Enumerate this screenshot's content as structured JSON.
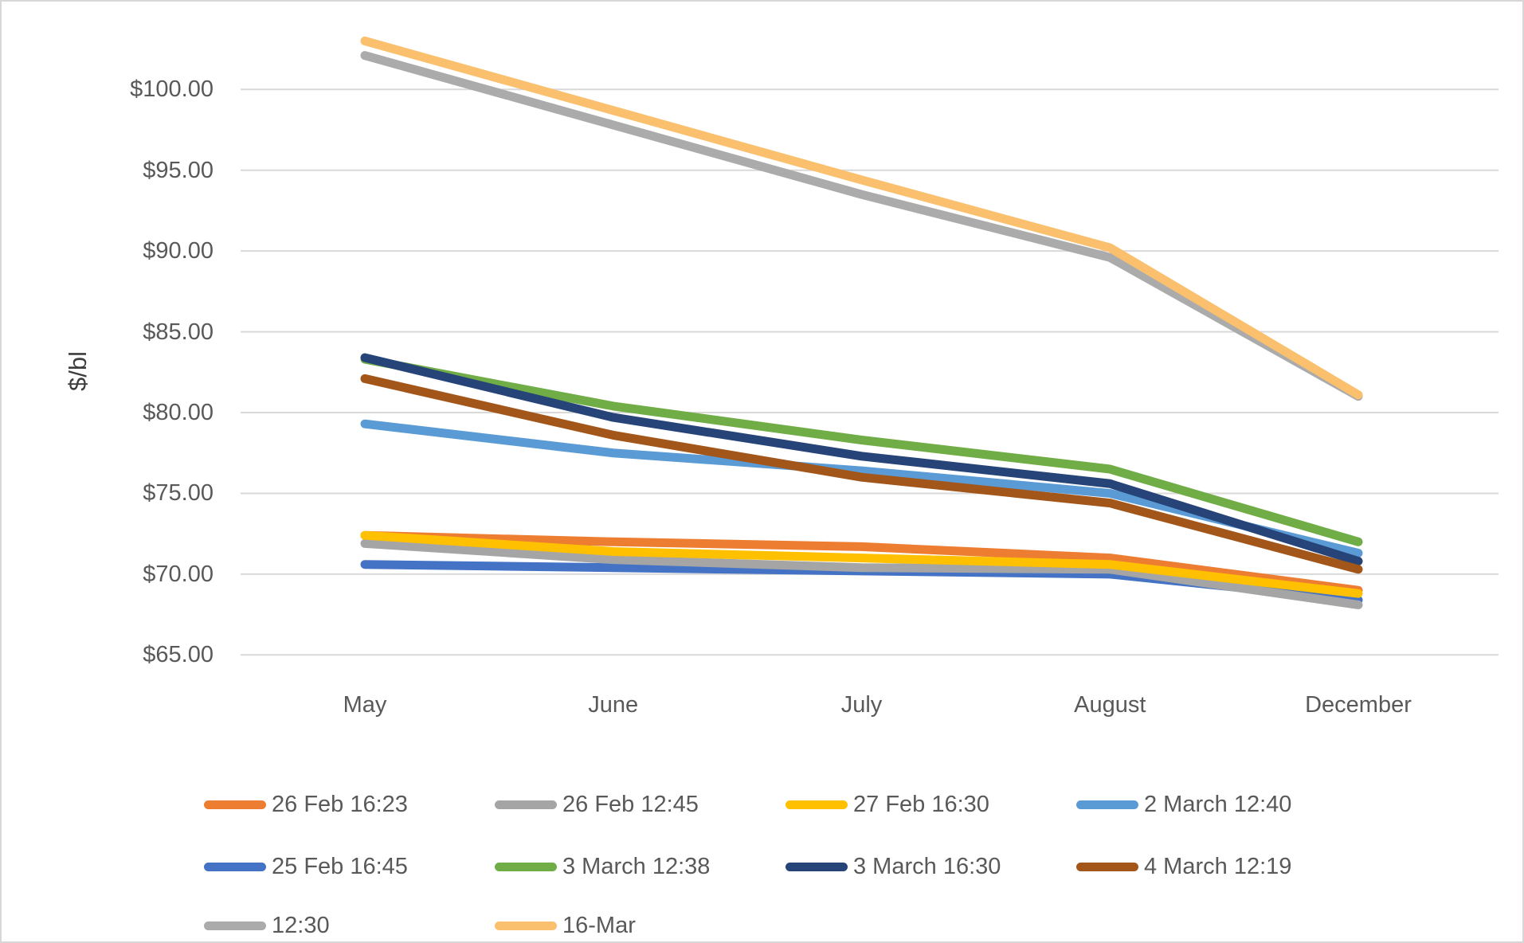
{
  "chart_data": {
    "type": "line",
    "title": "",
    "xlabel": "",
    "ylabel": "$/bl",
    "grid": true,
    "legend_position": "bottom",
    "ylim": [
      65,
      105.5
    ],
    "categories": [
      "May",
      "June",
      "July",
      "August",
      "December"
    ],
    "y_tick_labels": [
      "$100.00",
      "$95.00",
      "$90.00",
      "$85.00",
      "$80.00",
      "$75.00",
      "$70.00",
      "$65.00"
    ],
    "y_tick_values": [
      100,
      95,
      90,
      85,
      80,
      75,
      70,
      65
    ],
    "gridline_color": "#d9d9d9",
    "series": [
      {
        "name": "26 Feb 16:23",
        "color": "#ED7D31",
        "values": [
          72.4,
          72.0,
          71.7,
          71.0,
          69.0
        ]
      },
      {
        "name": "26 Feb 12:45",
        "color": "#A5A5A5",
        "values": [
          71.9,
          70.9,
          70.4,
          70.3,
          68.1
        ]
      },
      {
        "name": "27 Feb 16:30",
        "color": "#FFC000",
        "values": [
          72.4,
          71.4,
          71.0,
          70.6,
          68.8
        ]
      },
      {
        "name": "2 March 12:40",
        "color": "#5B9BD5",
        "values": [
          79.3,
          77.5,
          76.4,
          75.0,
          71.3
        ]
      },
      {
        "name": "25 Feb 16:45",
        "color": "#4472C4",
        "values": [
          70.6,
          70.4,
          70.2,
          70.0,
          68.4
        ]
      },
      {
        "name": "3 March 12:38",
        "color": "#70AD47",
        "values": [
          83.3,
          80.4,
          78.3,
          76.5,
          72.0
        ]
      },
      {
        "name": "3 March 16:30",
        "color": "#264478",
        "values": [
          83.4,
          79.7,
          77.3,
          75.6,
          70.8
        ]
      },
      {
        "name": "4 March 12:19",
        "color": "#A3561A",
        "values": [
          82.1,
          78.6,
          76.0,
          74.4,
          70.3
        ]
      },
      {
        "name": "12:30",
        "color": "#ABABAB",
        "values": [
          102.1,
          97.8,
          93.5,
          89.6,
          81.0
        ]
      },
      {
        "name": "16-Mar",
        "color": "#FAC06E",
        "values": [
          103.0,
          98.7,
          94.4,
          90.2,
          81.1
        ]
      }
    ],
    "plot_order": [
      4,
      0,
      1,
      2,
      3,
      5,
      6,
      7,
      8,
      9
    ]
  }
}
